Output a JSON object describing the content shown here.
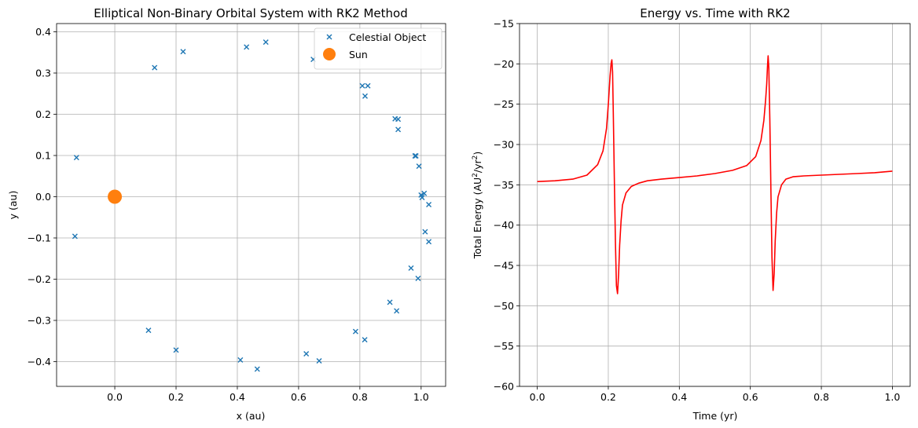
{
  "chart_data": [
    {
      "type": "scatter",
      "title": "Elliptical Non-Binary Orbital System with RK2 Method",
      "xlabel": "x (au)",
      "ylabel": "y (au)",
      "xlim": [
        -0.19,
        1.08
      ],
      "ylim": [
        -0.46,
        0.42
      ],
      "xticks": [
        0.0,
        0.2,
        0.4,
        0.6,
        0.8,
        1.0
      ],
      "xtick_labels": [
        "0.0",
        "0.2",
        "0.4",
        "0.6",
        "0.8",
        "1.0"
      ],
      "yticks": [
        0.4,
        0.3,
        0.2,
        0.1,
        0.0,
        -0.1,
        -0.2,
        -0.3,
        -0.4
      ],
      "ytick_labels": [
        "0.4",
        "0.3",
        "0.2",
        "0.1",
        "0.0",
        "−0.1",
        "−0.2",
        "−0.3",
        "−0.4"
      ],
      "grid": true,
      "legend_position": "top-right",
      "series": [
        {
          "name": "Celestial Object",
          "marker": "x",
          "color": "#1f77b4",
          "points": [
            [
              0.13,
              0.313
            ],
            [
              0.223,
              0.352
            ],
            [
              0.43,
              0.363
            ],
            [
              0.493,
              0.375
            ],
            [
              0.648,
              0.333
            ],
            [
              0.808,
              0.269
            ],
            [
              0.826,
              0.269
            ],
            [
              0.817,
              0.244
            ],
            [
              0.915,
              0.189
            ],
            [
              0.925,
              0.188
            ],
            [
              0.925,
              0.163
            ],
            [
              0.98,
              0.099
            ],
            [
              0.983,
              0.099
            ],
            [
              0.993,
              0.074
            ],
            [
              1.0,
              0.004
            ],
            [
              1.01,
              0.008
            ],
            [
              1.003,
              -0.002
            ],
            [
              1.025,
              -0.019
            ],
            [
              1.013,
              -0.085
            ],
            [
              1.025,
              -0.109
            ],
            [
              0.967,
              -0.173
            ],
            [
              0.99,
              -0.198
            ],
            [
              0.898,
              -0.256
            ],
            [
              0.92,
              -0.277
            ],
            [
              0.786,
              -0.327
            ],
            [
              0.816,
              -0.347
            ],
            [
              0.625,
              -0.381
            ],
            [
              0.667,
              -0.398
            ],
            [
              0.41,
              -0.396
            ],
            [
              0.465,
              -0.418
            ],
            [
              0.2,
              -0.372
            ],
            [
              0.11,
              -0.324
            ],
            [
              -0.125,
              0.095
            ],
            [
              -0.13,
              -0.096
            ]
          ]
        },
        {
          "name": "Sun",
          "marker": "circle",
          "color": "#ff7f0e",
          "points": [
            [
              0.0,
              0.0
            ]
          ]
        }
      ]
    },
    {
      "type": "line",
      "title": "Energy vs. Time with RK2",
      "xlabel": "Time (yr)",
      "ylabel_main": "Total Energy (AU",
      "ylabel_sup1": "2",
      "ylabel_mid": "/yr",
      "ylabel_sup2": "2",
      "ylabel_end": ")",
      "xlim": [
        -0.05,
        1.05
      ],
      "ylim": [
        -60,
        -15
      ],
      "xticks": [
        0.0,
        0.2,
        0.4,
        0.6,
        0.8,
        1.0
      ],
      "xtick_labels": [
        "0.0",
        "0.2",
        "0.4",
        "0.6",
        "0.8",
        "1.0"
      ],
      "yticks": [
        -15,
        -20,
        -25,
        -30,
        -35,
        -40,
        -45,
        -50,
        -55,
        -60
      ],
      "ytick_labels": [
        "−15",
        "−20",
        "−25",
        "−30",
        "−35",
        "−40",
        "−45",
        "−50",
        "−55",
        "−60"
      ],
      "grid": true,
      "series": [
        {
          "name": "",
          "color": "#ff0000",
          "x": [
            0.0,
            0.05,
            0.1,
            0.14,
            0.17,
            0.185,
            0.195,
            0.2,
            0.205,
            0.208,
            0.21,
            0.212,
            0.214,
            0.217,
            0.22,
            0.223,
            0.226,
            0.229,
            0.232,
            0.236,
            0.24,
            0.25,
            0.265,
            0.285,
            0.31,
            0.35,
            0.4,
            0.45,
            0.5,
            0.55,
            0.59,
            0.615,
            0.63,
            0.638,
            0.643,
            0.646,
            0.648,
            0.65,
            0.652,
            0.655,
            0.658,
            0.661,
            0.664,
            0.667,
            0.67,
            0.674,
            0.678,
            0.688,
            0.7,
            0.72,
            0.75,
            0.8,
            0.85,
            0.9,
            0.95,
            1.0
          ],
          "y": [
            -34.6,
            -34.5,
            -34.3,
            -33.8,
            -32.5,
            -30.8,
            -28.0,
            -25.0,
            -21.5,
            -19.9,
            -19.5,
            -21.0,
            -26.0,
            -34.0,
            -42.0,
            -47.5,
            -48.5,
            -46.0,
            -42.5,
            -39.5,
            -37.5,
            -36.0,
            -35.2,
            -34.8,
            -34.5,
            -34.3,
            -34.1,
            -33.9,
            -33.6,
            -33.2,
            -32.6,
            -31.5,
            -29.5,
            -27.0,
            -24.5,
            -22.5,
            -20.5,
            -19.0,
            -20.5,
            -27.0,
            -36.0,
            -44.0,
            -48.1,
            -46.0,
            -42.0,
            -38.5,
            -36.5,
            -35.0,
            -34.3,
            -34.0,
            -33.9,
            -33.8,
            -33.7,
            -33.6,
            -33.5,
            -33.3
          ]
        }
      ]
    }
  ]
}
